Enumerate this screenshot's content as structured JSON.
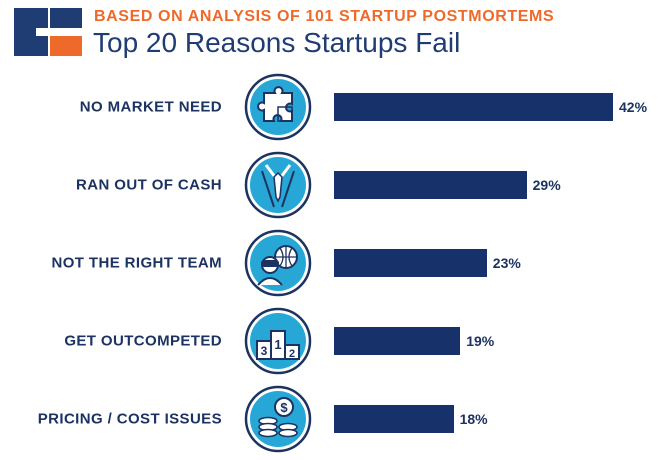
{
  "header": {
    "subtitle": "BASED ON ANALYSIS OF 101 STARTUP POSTMORTEMS",
    "title": "Top 20 Reasons Startups Fail"
  },
  "colors": {
    "accent": "#ee6a2b",
    "navy": "#17316a",
    "icon_fill": "#27a7d6",
    "icon_stroke": "#1c3362"
  },
  "icons": [
    "puzzle-icon",
    "suit-tie-icon",
    "team-vr-globe-icon",
    "podium-icon",
    "coins-dollar-icon"
  ],
  "chart_data": {
    "type": "bar",
    "orientation": "horizontal",
    "categories": [
      "NO MARKET NEED",
      "RAN OUT OF CASH",
      "NOT THE RIGHT TEAM",
      "GET OUTCOMPETED",
      "PRICING / COST ISSUES"
    ],
    "values": [
      42,
      29,
      23,
      19,
      18
    ],
    "value_labels": [
      "42%",
      "29%",
      "23%",
      "19%",
      "18%"
    ],
    "xlim": [
      0,
      42
    ],
    "grid": false,
    "legend": "none"
  }
}
